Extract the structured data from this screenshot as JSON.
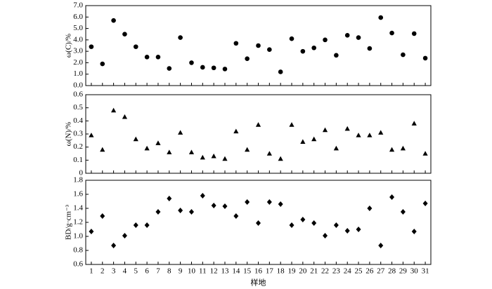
{
  "chart_data": [
    {
      "type": "scatter",
      "marker": "circle",
      "color": "#000000",
      "ylabel": "ω(C)/%",
      "values": [
        3.4,
        1.9,
        5.7,
        4.5,
        3.4,
        2.5,
        2.5,
        1.5,
        4.2,
        2.0,
        1.6,
        1.55,
        1.45,
        3.7,
        2.35,
        3.5,
        3.15,
        1.2,
        4.1,
        3.0,
        3.3,
        4.0,
        2.65,
        4.4,
        4.2,
        3.25,
        5.95,
        4.6,
        2.7,
        4.55,
        2.4
      ],
      "ylim": [
        0,
        7
      ],
      "yticks": [
        {
          "value": 0,
          "label": "0.0"
        },
        {
          "value": 1,
          "label": "1.0"
        },
        {
          "value": 2,
          "label": "2.0"
        },
        {
          "value": 3,
          "label": "3.0"
        },
        {
          "value": 4,
          "label": "4.0"
        },
        {
          "value": 5,
          "label": "5.0"
        },
        {
          "value": 6,
          "label": "6.0"
        },
        {
          "value": 7,
          "label": "7.0"
        }
      ]
    },
    {
      "type": "scatter",
      "marker": "triangle",
      "color": "#000000",
      "ylabel": "ω(N)/%",
      "values": [
        0.29,
        0.18,
        0.48,
        0.43,
        0.26,
        0.19,
        0.23,
        0.16,
        0.31,
        0.16,
        0.12,
        0.13,
        0.11,
        0.32,
        0.18,
        0.37,
        0.15,
        0.11,
        0.37,
        0.24,
        0.26,
        0.33,
        0.19,
        0.34,
        0.29,
        0.29,
        0.31,
        0.18,
        0.19,
        0.38,
        0.15
      ],
      "ylim": [
        0,
        0.6
      ],
      "yticks": [
        0,
        0.1,
        0.2,
        0.3,
        0.4,
        0.5,
        0.6
      ]
    },
    {
      "type": "scatter",
      "marker": "diamond",
      "color": "#000000",
      "ylabel": "BD/g·cm⁻³",
      "xlabel": "样地",
      "categories": [
        1,
        2,
        3,
        4,
        5,
        6,
        7,
        8,
        9,
        10,
        11,
        12,
        13,
        14,
        15,
        16,
        17,
        18,
        19,
        20,
        21,
        22,
        23,
        24,
        25,
        26,
        27,
        28,
        29,
        30,
        31
      ],
      "values": [
        1.07,
        1.29,
        0.87,
        1.01,
        1.16,
        1.16,
        1.35,
        1.54,
        1.37,
        1.35,
        1.58,
        1.44,
        1.43,
        1.29,
        1.49,
        1.19,
        1.49,
        1.46,
        1.16,
        1.24,
        1.19,
        1.01,
        1.16,
        1.08,
        1.1,
        1.4,
        0.87,
        1.56,
        1.35,
        1.07,
        1.47
      ],
      "ylim": [
        0.6,
        1.8
      ],
      "yticks": [
        0.6,
        0.8,
        {
          "value": 1,
          "label": "1.0"
        },
        1.2,
        1.4,
        1.6,
        1.8
      ]
    }
  ]
}
